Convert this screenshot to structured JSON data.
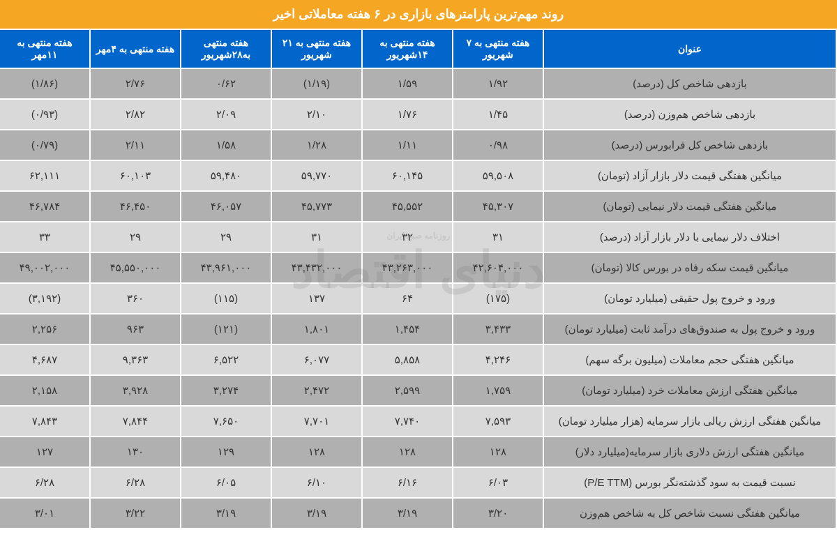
{
  "title": "روند مهم‌ترین پارامترهای بازاری در ۶ هفته معاملاتی اخیر",
  "title_bg": "#f5a623",
  "title_color": "#ffffff",
  "header_bg": "#0066cc",
  "header_color": "#ffffff",
  "row_odd_bg": "#b0b0b0",
  "row_even_bg": "#d9d9d9",
  "border_color": "#ffffff",
  "text_color": "#333333",
  "watermark_text": "دنیای اقتصاد",
  "watermark_sub": "روزنامه صبح ایران",
  "columns": [
    "عنوان",
    "هفته منتهی به ۷ شهریور",
    "هفته منتهی به ۱۴شهریور",
    "هفته منتهی به ۲۱ شهریور",
    "هفته منتهی به۲۸شهریور",
    "هفته منتهی به ۴مهر",
    "هفته منتهی به ۱۱مهر"
  ],
  "rows": [
    {
      "title": "بازدهی شاخص کل (درصد)",
      "cells": [
        "۱/۹۲",
        "۱/۵۹",
        "(۱/۱۹)",
        "۰/۶۲",
        "۲/۷۶",
        "(۱/۸۶)"
      ]
    },
    {
      "title": "بازدهی شاخص هم‌وزن (درصد)",
      "cells": [
        "۱/۴۵",
        "۱/۷۶",
        "۲/۱۰",
        "۲/۰۹",
        "۲/۸۲",
        "(۰/۹۳)"
      ]
    },
    {
      "title": "بازدهی شاخص کل فرابورس (درصد)",
      "cells": [
        "۰/۹۸",
        "۱/۱۱",
        "۱/۲۸",
        "۱/۵۸",
        "۲/۱۱",
        "(۰/۷۹)"
      ]
    },
    {
      "title": "میانگین هفتگی قیمت دلار بازار آزاد (تومان)",
      "cells": [
        "۵۹,۵۰۸",
        "۶۰,۱۴۵",
        "۵۹,۷۷۰",
        "۵۹,۴۸۰",
        "۶۰,۱۰۳",
        "۶۲,۱۱۱"
      ]
    },
    {
      "title": "میانگین هفتگی قیمت دلار نیمایی (تومان)",
      "cells": [
        "۴۵,۳۰۷",
        "۴۵,۵۵۲",
        "۴۵,۷۷۳",
        "۴۶,۰۵۷",
        "۴۶,۴۵۰",
        "۴۶,۷۸۴"
      ]
    },
    {
      "title": "اختلاف دلار نیمایی با دلار بازار آزاد (درصد)",
      "cells": [
        "۳۱",
        "۳۲",
        "۳۱",
        "۲۹",
        "۲۹",
        "۳۳"
      ]
    },
    {
      "title": "میانگین قیمت سکه رفاه در بورس کالا (تومان)",
      "cells": [
        "۴۲,۶۰۴,۰۰۰",
        "۴۳,۲۶۳,۰۰۰",
        "۴۳,۴۳۲,۰۰۰",
        "۴۳,۹۶۱,۰۰۰",
        "۴۵,۵۵۰,۰۰۰",
        "۴۹,۰۰۲,۰۰۰"
      ]
    },
    {
      "title": "ورود و خروج پول حقیقی (میلیارد تومان)",
      "cells": [
        "(۱۷۵)",
        "۶۴",
        "۱۳۷",
        "(۱۱۵)",
        "۳۶۰",
        "(۳,۱۹۲)"
      ]
    },
    {
      "title": "ورود و خروج پول به صندوق‌های درآمد ثابت (میلیارد تومان)",
      "cells": [
        "۳,۴۳۳",
        "۱,۴۵۴",
        "۱,۸۰۱",
        "(۱۲۱)",
        "۹۶۳",
        "۲,۲۵۶"
      ]
    },
    {
      "title": "میانگین هفتگی حجم معاملات (میلیون برگه سهم)",
      "cells": [
        "۴,۲۴۶",
        "۵,۸۵۸",
        "۶,۰۷۷",
        "۶,۵۲۲",
        "۹,۳۶۳",
        "۴,۶۸۷"
      ]
    },
    {
      "title": "میانگین هفتگی ارزش معاملات خرد (میلیارد تومان)",
      "cells": [
        "۱,۷۵۹",
        "۲,۵۹۹",
        "۲,۴۷۲",
        "۳,۲۷۴",
        "۳,۹۲۸",
        "۲,۱۵۸"
      ]
    },
    {
      "title": "میانگین هفتگی ارزش ریالی بازار سرمایه (هزار میلیارد تومان)",
      "cells": [
        "۷,۵۹۳",
        "۷,۷۴۰",
        "۷,۷۰۱",
        "۷,۶۵۰",
        "۷,۸۴۴",
        "۷,۸۴۳"
      ]
    },
    {
      "title": "میانگین هفتگی ارزش دلاری بازار سرمایه(میلیارد دلار)",
      "cells": [
        "۱۲۸",
        "۱۲۸",
        "۱۲۸",
        "۱۲۹",
        "۱۳۰",
        "۱۲۷"
      ]
    },
    {
      "title": "نسبت قیمت به سود گذشته‌نگر بورس (P/E TTM)",
      "cells": [
        "۶/۰۳",
        "۶/۱۶",
        "۶/۱۰",
        "۶/۰۵",
        "۶/۲۸",
        "۶/۲۸"
      ]
    },
    {
      "title": "میانگین هفتگی نسبت شاخص کل به شاخص هم‌وزن",
      "cells": [
        "۳/۲۰",
        "۳/۱۹",
        "۳/۱۹",
        "۳/۱۹",
        "۳/۲۲",
        "۳/۰۱"
      ]
    }
  ]
}
